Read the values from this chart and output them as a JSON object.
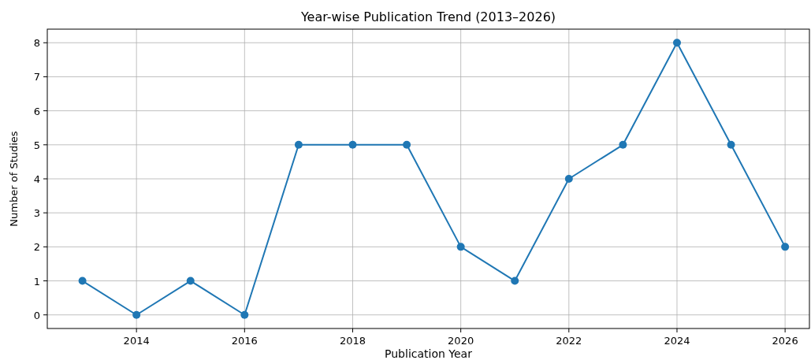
{
  "chart_data": {
    "type": "line",
    "title": "Year-wise Publication Trend (2013–2026)",
    "xlabel": "Publication Year",
    "ylabel": "Number of Studies",
    "x": [
      2013,
      2014,
      2015,
      2016,
      2017,
      2018,
      2019,
      2020,
      2021,
      2022,
      2023,
      2024,
      2025,
      2026
    ],
    "series": [
      {
        "color": "#1f77b4",
        "values": [
          1,
          0,
          1,
          0,
          5,
          5,
          5,
          2,
          1,
          4,
          5,
          8,
          5,
          2
        ]
      }
    ],
    "xlim": [
      2012.35,
      2026.45
    ],
    "xticks": [
      2014,
      2016,
      2018,
      2020,
      2022,
      2024,
      2026
    ],
    "ylim": [
      -0.4,
      8.4
    ],
    "yticks": [
      0,
      1,
      2,
      3,
      4,
      5,
      6,
      7,
      8
    ],
    "grid": true,
    "marker": "circle",
    "line_style": "solid"
  }
}
